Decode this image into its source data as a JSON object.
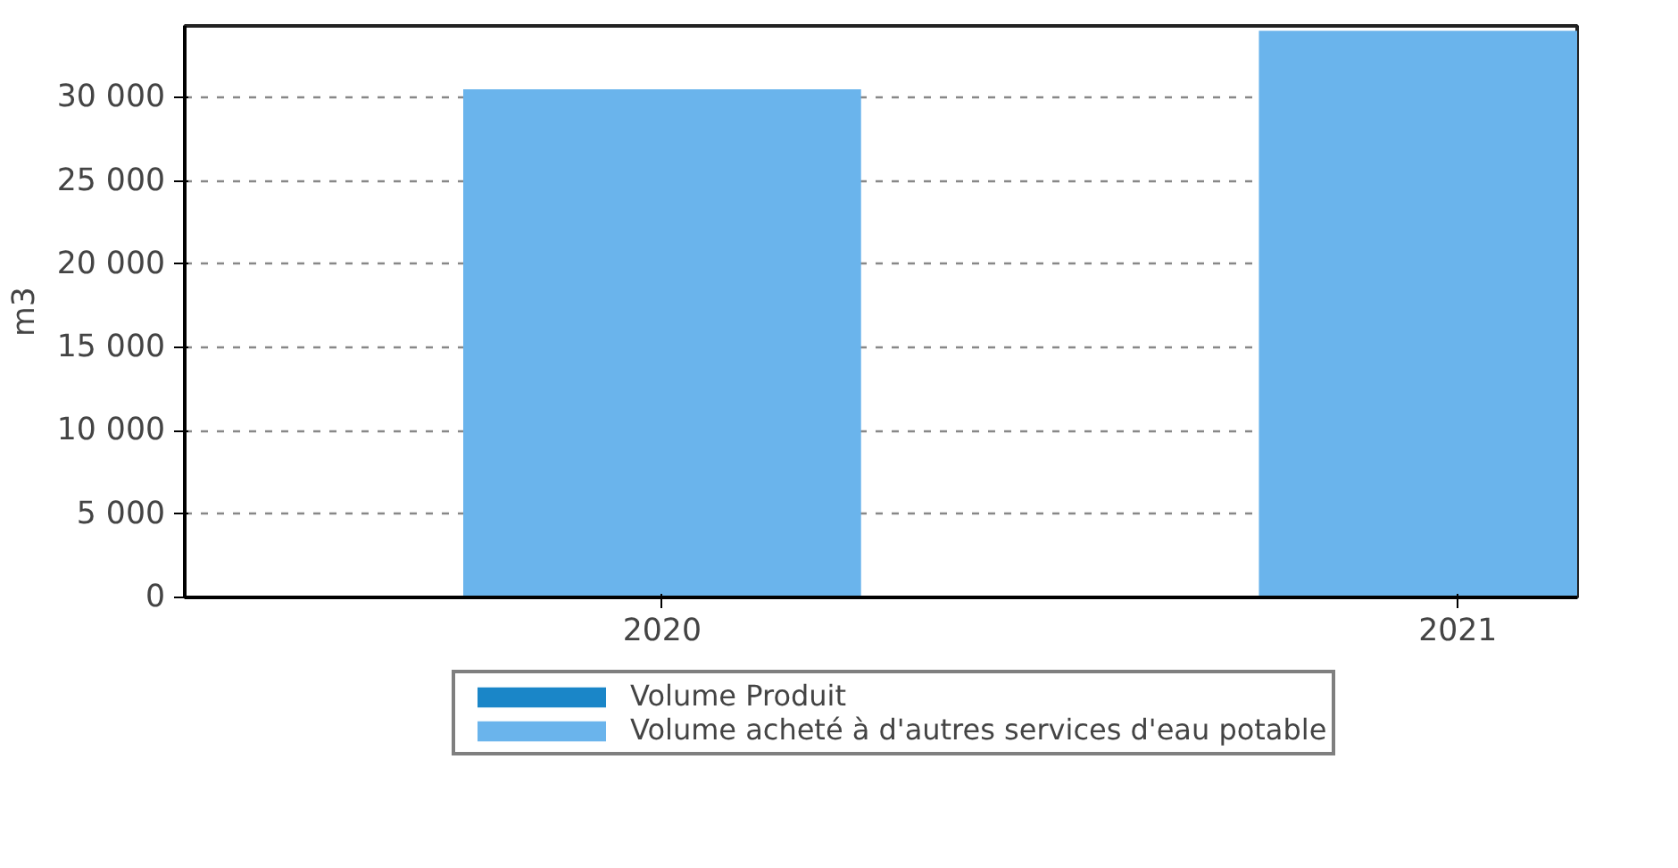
{
  "chart_data": {
    "type": "bar",
    "ylabel": "m3",
    "categories": [
      "2020",
      "2021"
    ],
    "series": [
      {
        "name": "Volume Produit",
        "color": "#1a86c8",
        "values": [
          0,
          0
        ]
      },
      {
        "name": "Volume acheté à d'autres services d'eau potable",
        "color": "#6ab4ec",
        "values": [
          30500,
          34000
        ]
      }
    ],
    "ylim": [
      0,
      34300
    ],
    "yticks": [
      {
        "value": 0,
        "label": "0"
      },
      {
        "value": 5000,
        "label": "5 000"
      },
      {
        "value": 10000,
        "label": "10 000"
      },
      {
        "value": 15000,
        "label": "15 000"
      },
      {
        "value": 20000,
        "label": "20 000"
      },
      {
        "value": 25000,
        "label": "25 000"
      },
      {
        "value": 30000,
        "label": "30 000"
      }
    ],
    "grid": "y",
    "legend": "bottom"
  }
}
